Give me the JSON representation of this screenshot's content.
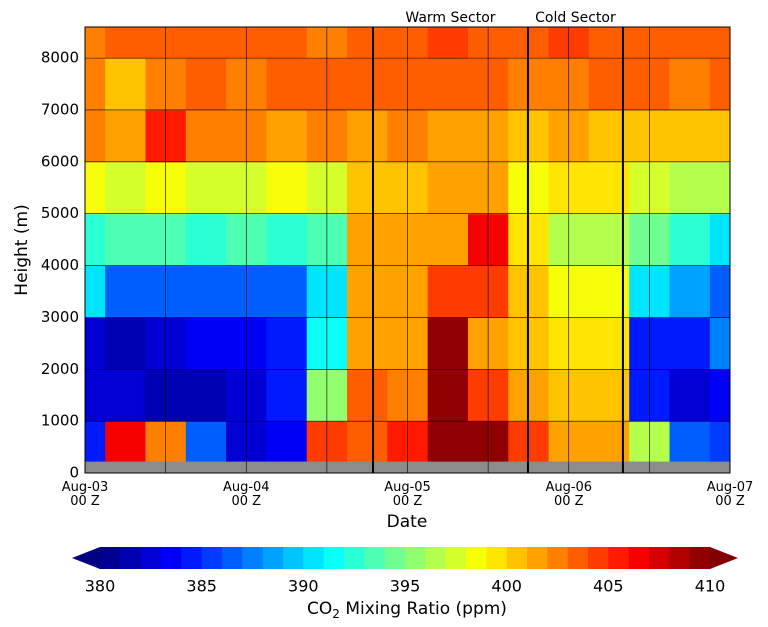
{
  "chart_data": {
    "type": "contour",
    "x_label": "Date",
    "y_label": "Height (m)",
    "xlim": [
      0,
      4
    ],
    "xticks": [
      {
        "value": 0,
        "label": "Aug-03\n00 Z"
      },
      {
        "value": 1,
        "label": "Aug-04\n00 Z"
      },
      {
        "value": 2,
        "label": "Aug-05\n00 Z"
      },
      {
        "value": 3,
        "label": "Aug-06\n00 Z"
      },
      {
        "value": 4,
        "label": "Aug-07\n00 Z"
      }
    ],
    "x_minor_grid": [
      0.5,
      1.5,
      2.5,
      3.5
    ],
    "ylim": [
      0,
      8600
    ],
    "yticks": [
      0,
      1000,
      2000,
      3000,
      4000,
      5000,
      6000,
      7000,
      8000
    ],
    "grid": true,
    "colormap": "jet",
    "clim": [
      380,
      410
    ],
    "level_step": 1,
    "colorbar_ticks": [
      380,
      385,
      390,
      395,
      400,
      405,
      410
    ],
    "colorbar_label": [
      "CO",
      "2",
      " Mixing Ratio (ppm)"
    ],
    "surface_height": 220,
    "sector_boundaries": [
      1.786,
      2.747,
      3.336
    ],
    "annotations": [
      "Warm Sector",
      "Cold Sector"
    ],
    "x": [
      0,
      0.25,
      0.5,
      0.75,
      1,
      1.25,
      1.5,
      1.75,
      2,
      2.25,
      2.5,
      2.75,
      3,
      3.25,
      3.5,
      3.75,
      4
    ],
    "heights": [
      500,
      1500,
      2500,
      3500,
      4500,
      5500,
      6500,
      7500,
      8500
    ],
    "z": [
      [
        384,
        406,
        402,
        386,
        382,
        383,
        404,
        403,
        405,
        410,
        409,
        404,
        401,
        401,
        396,
        386,
        385
      ],
      [
        382,
        382,
        381,
        381,
        382,
        384,
        395,
        403,
        402,
        410,
        404,
        401,
        400,
        400,
        384,
        382,
        383
      ],
      [
        382,
        381,
        382,
        383,
        383,
        384,
        391,
        401,
        401,
        409,
        401,
        400,
        399,
        399,
        384,
        384,
        387
      ],
      [
        390,
        386,
        386,
        386,
        386,
        386,
        390,
        401,
        401,
        404,
        404,
        400,
        398,
        398,
        390,
        388,
        386
      ],
      [
        392,
        393,
        393,
        392,
        393,
        392,
        393,
        401,
        401,
        401,
        406,
        399,
        396,
        396,
        394,
        392,
        390
      ],
      [
        398,
        397,
        398,
        397,
        397,
        398,
        397,
        400,
        400,
        401,
        401,
        398,
        399,
        399,
        397,
        396,
        396
      ],
      [
        402,
        401,
        405,
        402,
        402,
        401,
        402,
        401,
        402,
        401,
        401,
        400,
        401,
        400,
        400,
        400,
        400
      ],
      [
        402,
        400,
        402,
        403,
        402,
        403,
        403,
        403,
        403,
        403,
        403,
        402,
        402,
        403,
        403,
        402,
        403
      ],
      [
        402,
        403,
        403,
        403,
        403,
        403,
        402,
        403,
        403,
        404,
        403,
        403,
        404,
        403,
        403,
        403,
        403
      ]
    ]
  }
}
